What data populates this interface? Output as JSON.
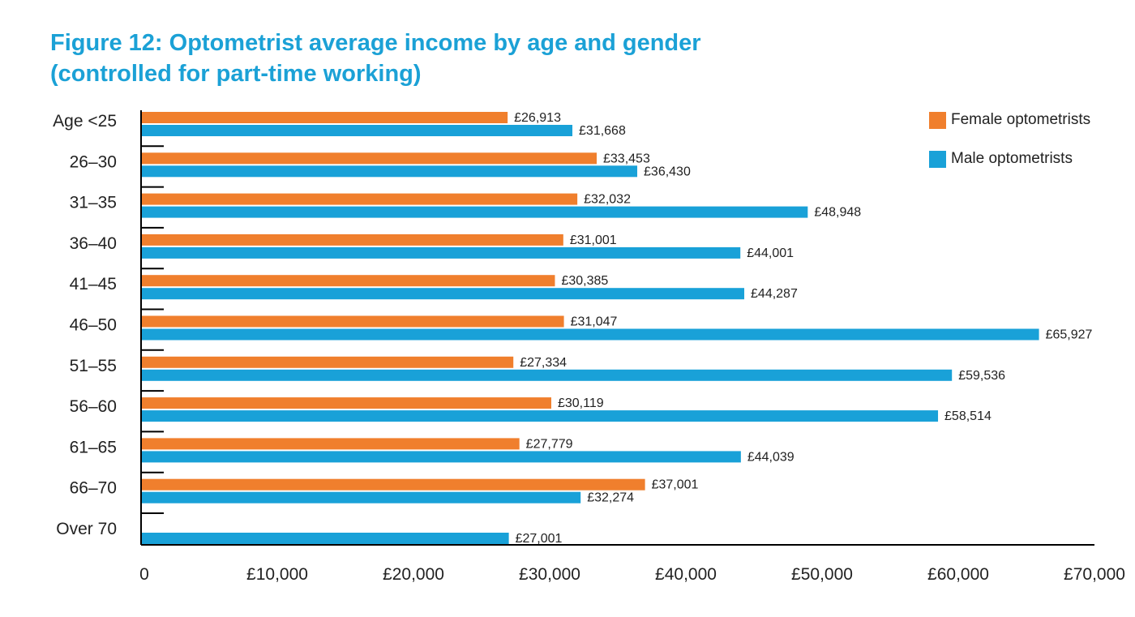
{
  "figure": {
    "title_line1": "Figure 12: Optometrist average income by age and gender",
    "title_line2": "(controlled for part-time working)"
  },
  "colors": {
    "title": "#1ba1d6",
    "female": "#f07f2d",
    "male": "#19a1d8",
    "axis": "#000000",
    "text": "#222222"
  },
  "chart_data": {
    "type": "bar",
    "orientation": "horizontal",
    "title": "Figure 12: Optometrist average income by age and gender (controlled for part-time working)",
    "xlabel": "",
    "ylabel": "",
    "xlim": [
      0,
      70000
    ],
    "categories": [
      "Age <25",
      "26–30",
      "31–35",
      "36–40",
      "41–45",
      "46–50",
      "51–55",
      "56–60",
      "61–65",
      "66–70",
      "Over 70"
    ],
    "series": [
      {
        "name": "Female optometrists",
        "values": [
          26913,
          33453,
          32032,
          31001,
          30385,
          31047,
          27334,
          30119,
          27779,
          37001,
          null
        ],
        "labels": [
          "£26,913",
          "£33,453",
          "£32,032",
          "£31,001",
          "£30,385",
          "£31,047",
          "£27,334",
          "£30,119",
          "£27,779",
          "£37,001",
          null
        ]
      },
      {
        "name": "Male optometrists",
        "values": [
          31668,
          36430,
          48948,
          44001,
          44287,
          65927,
          59536,
          58514,
          44039,
          32274,
          27001
        ],
        "labels": [
          "£31,668",
          "£36,430",
          "£48,948",
          "£44,001",
          "£44,287",
          "£65,927",
          "£59,536",
          "£58,514",
          "£44,039",
          "£32,274",
          "£27,001"
        ]
      }
    ],
    "xticks": [
      0,
      10000,
      20000,
      30000,
      40000,
      50000,
      60000,
      70000
    ],
    "xtick_labels": [
      "0",
      "£10,000",
      "£20,000",
      "£30,000",
      "£40,000",
      "£50,000",
      "£60,000",
      "£70,000"
    ],
    "legend_position": "top-right",
    "grid": false
  }
}
